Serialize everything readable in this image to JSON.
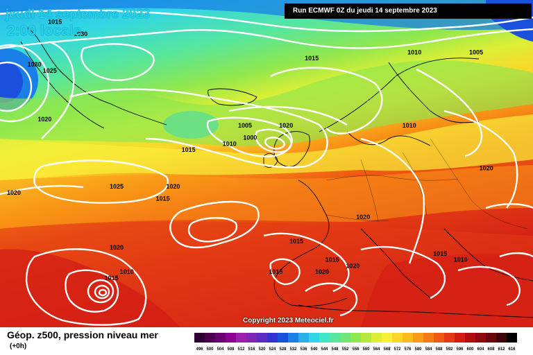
{
  "map": {
    "date_label": "jeudi 14 septembre 2023",
    "time_label": "2:00 locale",
    "run_label": "Run ECMWF 0Z du jeudi 14 septembre 2023",
    "copyright": "Copyright 2023 Meteociel.fr",
    "isobar_labels": [
      {
        "text": "1015",
        "lon": -42,
        "lat": 73
      },
      {
        "text": "1030",
        "lon": -37,
        "lat": 71
      },
      {
        "text": "1030",
        "lon": -46,
        "lat": 66
      },
      {
        "text": "1025",
        "lon": -43,
        "lat": 65
      },
      {
        "text": "1010",
        "lon": -59,
        "lat": 64
      },
      {
        "text": "1005",
        "lon": -64,
        "lat": 62
      },
      {
        "text": "1000",
        "lon": -75,
        "lat": 60
      },
      {
        "text": "1015",
        "lon": -55,
        "lat": 59
      },
      {
        "text": "1020",
        "lon": -44,
        "lat": 57
      },
      {
        "text": "1015",
        "lon": 8,
        "lat": 67
      },
      {
        "text": "1010",
        "lon": 28,
        "lat": 68
      },
      {
        "text": "1005",
        "lon": 40,
        "lat": 68
      },
      {
        "text": "1005",
        "lon": -5,
        "lat": 56
      },
      {
        "text": "1000",
        "lon": -4,
        "lat": 54
      },
      {
        "text": "1010",
        "lon": -8,
        "lat": 53
      },
      {
        "text": "1015",
        "lon": -16,
        "lat": 52
      },
      {
        "text": "1020",
        "lon": 3,
        "lat": 56
      },
      {
        "text": "1010",
        "lon": 27,
        "lat": 56
      },
      {
        "text": "1020",
        "lon": 42,
        "lat": 49
      },
      {
        "text": "1025",
        "lon": -30,
        "lat": 46
      },
      {
        "text": "1020",
        "lon": -19,
        "lat": 46
      },
      {
        "text": "1015",
        "lon": -21,
        "lat": 44
      },
      {
        "text": "1020",
        "lon": -50,
        "lat": 45
      },
      {
        "text": "1020",
        "lon": -30,
        "lat": 36
      },
      {
        "text": "1010",
        "lon": -28,
        "lat": 32
      },
      {
        "text": "1015",
        "lon": -31,
        "lat": 31
      },
      {
        "text": "1020",
        "lon": 18,
        "lat": 41
      },
      {
        "text": "1015",
        "lon": 5,
        "lat": 37
      },
      {
        "text": "1015",
        "lon": 12,
        "lat": 34
      },
      {
        "text": "1020",
        "lon": 16,
        "lat": 33
      },
      {
        "text": "1020",
        "lon": 10,
        "lat": 32
      },
      {
        "text": "1015",
        "lon": 1,
        "lat": 32
      },
      {
        "text": "1015",
        "lon": 33,
        "lat": 35
      },
      {
        "text": "1010",
        "lon": 37,
        "lat": 34
      }
    ]
  },
  "colors": {
    "pressure_lines": "#ffffff",
    "coastlines": "#000000",
    "low_center": "#0b2a9a",
    "high_center": "#e23a14"
  },
  "legend": {
    "title": "Géop. z500, pression niveau mer",
    "subtitle": "(+0h)",
    "scale": [
      {
        "label": "496",
        "color": "#300030"
      },
      {
        "label": "500",
        "color": "#4b004f"
      },
      {
        "label": "504",
        "color": "#6a006e"
      },
      {
        "label": "508",
        "color": "#8d0094"
      },
      {
        "label": "512",
        "color": "#9d1fab"
      },
      {
        "label": "516",
        "color": "#7d25b5"
      },
      {
        "label": "520",
        "color": "#5b2cc3"
      },
      {
        "label": "524",
        "color": "#3333d1"
      },
      {
        "label": "528",
        "color": "#1b50dd"
      },
      {
        "label": "532",
        "color": "#1a7fe6"
      },
      {
        "label": "536",
        "color": "#27b1ec"
      },
      {
        "label": "540",
        "color": "#31d5e6"
      },
      {
        "label": "544",
        "color": "#3fe6c8"
      },
      {
        "label": "548",
        "color": "#56e69f"
      },
      {
        "label": "552",
        "color": "#6ee678"
      },
      {
        "label": "556",
        "color": "#8ee74e"
      },
      {
        "label": "560",
        "color": "#b5ea3a"
      },
      {
        "label": "564",
        "color": "#dcef36"
      },
      {
        "label": "568",
        "color": "#f8ef3a"
      },
      {
        "label": "572",
        "color": "#fbd62a"
      },
      {
        "label": "576",
        "color": "#fbba1f"
      },
      {
        "label": "580",
        "color": "#f99a18"
      },
      {
        "label": "584",
        "color": "#f57b13"
      },
      {
        "label": "588",
        "color": "#ee5c12"
      },
      {
        "label": "592",
        "color": "#e23a14"
      },
      {
        "label": "596",
        "color": "#d11b14"
      },
      {
        "label": "600",
        "color": "#b00c12"
      },
      {
        "label": "604",
        "color": "#8d0a10"
      },
      {
        "label": "608",
        "color": "#6a080d"
      },
      {
        "label": "612",
        "color": "#3e050a"
      },
      {
        "label": "616",
        "color": "#000000"
      }
    ]
  }
}
